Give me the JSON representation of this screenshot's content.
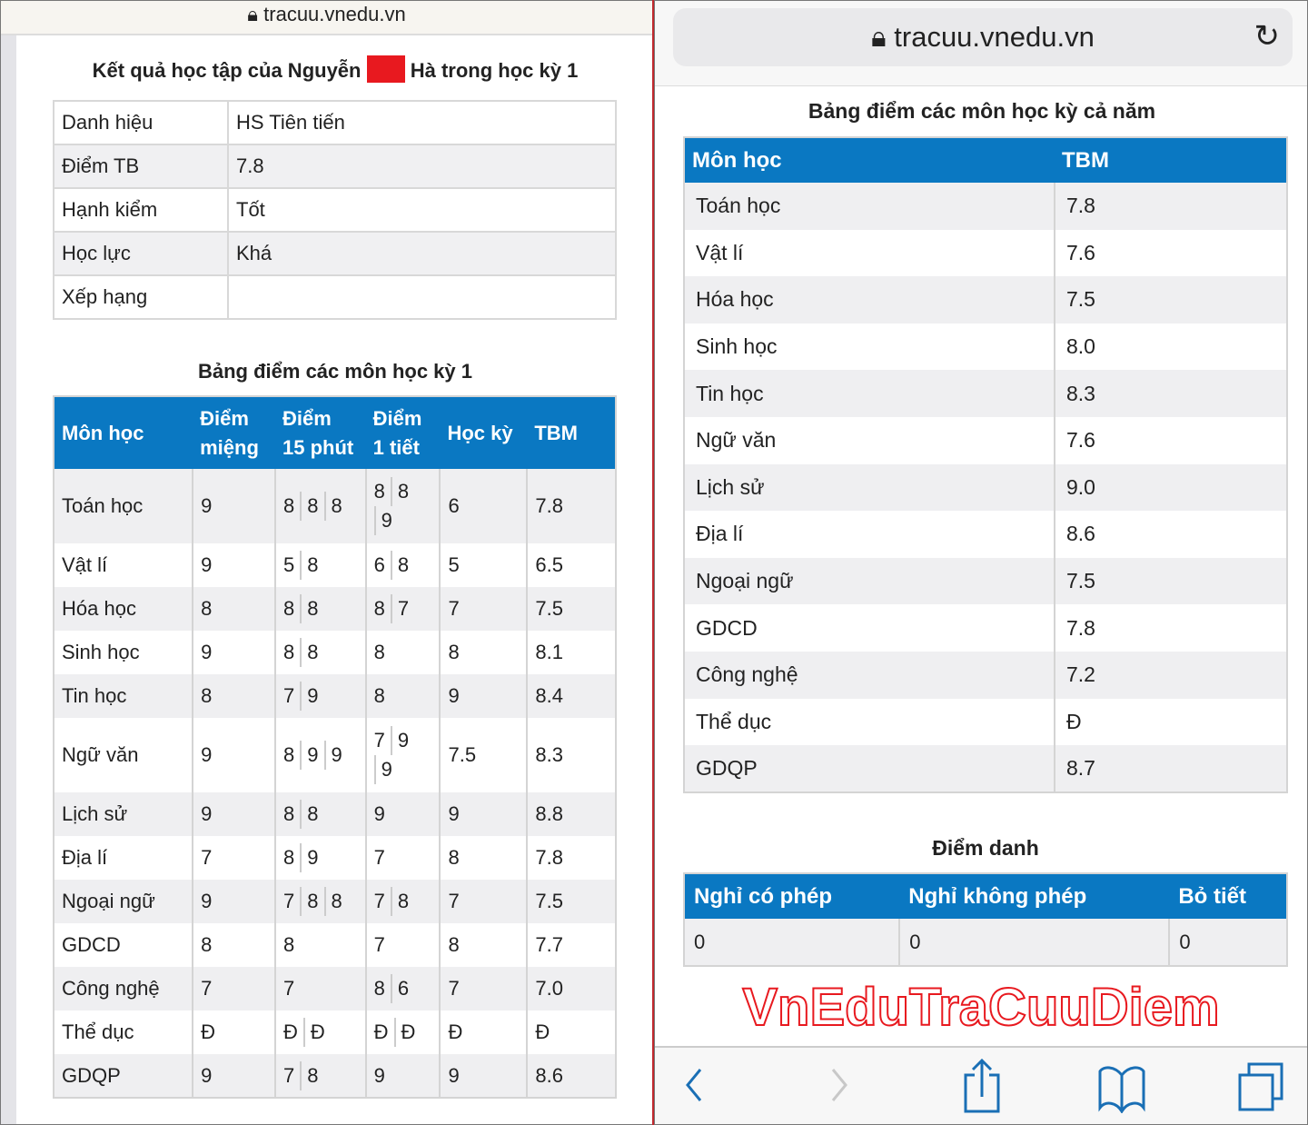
{
  "left": {
    "url": "tracuu.vnedu.vn",
    "title_before": "Kết quả học tập của Nguyễn",
    "title_after": "Hà trong học kỳ 1",
    "redaction_color": "#e8191f",
    "info": [
      [
        "Danh hiệu",
        "HS Tiên tiến"
      ],
      [
        "Điểm TB",
        "7.8"
      ],
      [
        "Hạnh kiểm",
        "Tốt"
      ],
      [
        "Học lực",
        "Khá"
      ],
      [
        "Xếp hạng",
        ""
      ]
    ],
    "grades_title": "Bảng điểm các môn học kỳ 1",
    "grades_headers": [
      "Môn học",
      "Điểm miệng",
      "Điểm 15 phút",
      "Điểm 1 tiết",
      "Học kỳ",
      "TBM"
    ],
    "grades": [
      [
        "Toán học",
        [
          "9"
        ],
        [
          "8",
          "8",
          "8"
        ],
        [
          "8",
          "8",
          "9"
        ],
        "6",
        "7.8"
      ],
      [
        "Vật lí",
        [
          "9"
        ],
        [
          "5",
          "8"
        ],
        [
          "6",
          "8"
        ],
        "5",
        "6.5"
      ],
      [
        "Hóa học",
        [
          "8"
        ],
        [
          "8",
          "8"
        ],
        [
          "8",
          "7"
        ],
        "7",
        "7.5"
      ],
      [
        "Sinh học",
        [
          "9"
        ],
        [
          "8",
          "8"
        ],
        [
          "8"
        ],
        "8",
        "8.1"
      ],
      [
        "Tin học",
        [
          "8"
        ],
        [
          "7",
          "9"
        ],
        [
          "8"
        ],
        "9",
        "8.4"
      ],
      [
        "Ngữ văn",
        [
          "9"
        ],
        [
          "8",
          "9",
          "9"
        ],
        [
          "7",
          "9",
          "9"
        ],
        "7.5",
        "8.3"
      ],
      [
        "Lịch sử",
        [
          "9"
        ],
        [
          "8",
          "8"
        ],
        [
          "9"
        ],
        "9",
        "8.8"
      ],
      [
        "Địa lí",
        [
          "7"
        ],
        [
          "8",
          "9"
        ],
        [
          "7"
        ],
        "8",
        "7.8"
      ],
      [
        "Ngoại ngữ",
        [
          "9"
        ],
        [
          "7",
          "8",
          "8"
        ],
        [
          "7",
          "8"
        ],
        "7",
        "7.5"
      ],
      [
        "GDCD",
        [
          "8"
        ],
        [
          "8"
        ],
        [
          "7"
        ],
        "8",
        "7.7"
      ],
      [
        "Công nghệ",
        [
          "7"
        ],
        [
          "7"
        ],
        [
          "8",
          "6"
        ],
        "7",
        "7.0"
      ],
      [
        "Thể dục",
        [
          "Đ"
        ],
        [
          "Đ",
          "Đ"
        ],
        [
          "Đ",
          "Đ"
        ],
        "Đ",
        "Đ"
      ],
      [
        "GDQP",
        [
          "9"
        ],
        [
          "7",
          "8"
        ],
        [
          "9"
        ],
        "9",
        "8.6"
      ]
    ]
  },
  "right": {
    "url": "tracuu.vnedu.vn",
    "year_title": "Bảng điểm các môn học kỳ cả năm",
    "year_headers": [
      "Môn học",
      "TBM"
    ],
    "year": [
      [
        "Toán học",
        "7.8"
      ],
      [
        "Vật lí",
        "7.6"
      ],
      [
        "Hóa học",
        "7.5"
      ],
      [
        "Sinh học",
        "8.0"
      ],
      [
        "Tin học",
        "8.3"
      ],
      [
        "Ngữ văn",
        "7.6"
      ],
      [
        "Lịch sử",
        "9.0"
      ],
      [
        "Địa lí",
        "8.6"
      ],
      [
        "Ngoại ngữ",
        "7.5"
      ],
      [
        "GDCD",
        "7.8"
      ],
      [
        "Công nghệ",
        "7.2"
      ],
      [
        "Thể dục",
        "Đ"
      ],
      [
        "GDQP",
        "8.7"
      ]
    ],
    "attendance_title": "Điểm danh",
    "attendance_headers": [
      "Nghỉ có phép",
      "Nghỉ không phép",
      "Bỏ tiết"
    ],
    "attendance": [
      "0",
      "0",
      "0"
    ],
    "toolbar": [
      "back-icon",
      "forward-icon",
      "share-icon",
      "bookmarks-icon",
      "tabs-icon"
    ]
  },
  "watermark": "VnEduTraCuuDiem",
  "colors": {
    "header_blue": "#0a78c2",
    "watermark_red": "#e8191f",
    "toolbar_blue": "#1a6fb5"
  }
}
